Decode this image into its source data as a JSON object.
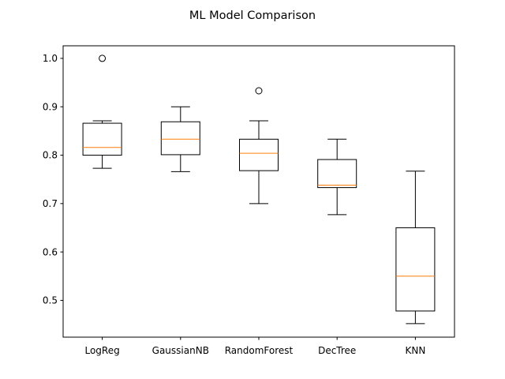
{
  "chart_data": {
    "type": "box",
    "title": "ML Model Comparison",
    "xlabel": "",
    "ylabel": "",
    "categories": [
      "LogReg",
      "GaussianNB",
      "RandomForest",
      "DecTree",
      "KNN"
    ],
    "boxes": [
      {
        "category": "LogReg",
        "whisker_low": 0.773,
        "q1": 0.8,
        "median": 0.816,
        "q3": 0.866,
        "whisker_high": 0.871,
        "outliers": [
          1.0
        ]
      },
      {
        "category": "GaussianNB",
        "whisker_low": 0.766,
        "q1": 0.801,
        "median": 0.833,
        "q3": 0.869,
        "whisker_high": 0.9,
        "outliers": []
      },
      {
        "category": "RandomForest",
        "whisker_low": 0.7,
        "q1": 0.768,
        "median": 0.804,
        "q3": 0.833,
        "whisker_high": 0.871,
        "outliers": [
          0.933
        ]
      },
      {
        "category": "DecTree",
        "whisker_low": 0.677,
        "q1": 0.733,
        "median": 0.738,
        "q3": 0.791,
        "whisker_high": 0.833,
        "outliers": []
      },
      {
        "category": "KNN",
        "whisker_low": 0.452,
        "q1": 0.478,
        "median": 0.55,
        "q3": 0.65,
        "whisker_high": 0.767,
        "outliers": []
      }
    ],
    "yticks": [
      0.5,
      0.6,
      0.7,
      0.8,
      0.9,
      1.0
    ],
    "ytick_labels": [
      "0.5",
      "0.6",
      "0.7",
      "0.8",
      "0.9",
      "1.0"
    ],
    "ylim": [
      0.424,
      1.026
    ],
    "grid": false,
    "colors": {
      "box": "#000000",
      "median": "#ff7f0e",
      "background": "#ffffff"
    }
  }
}
